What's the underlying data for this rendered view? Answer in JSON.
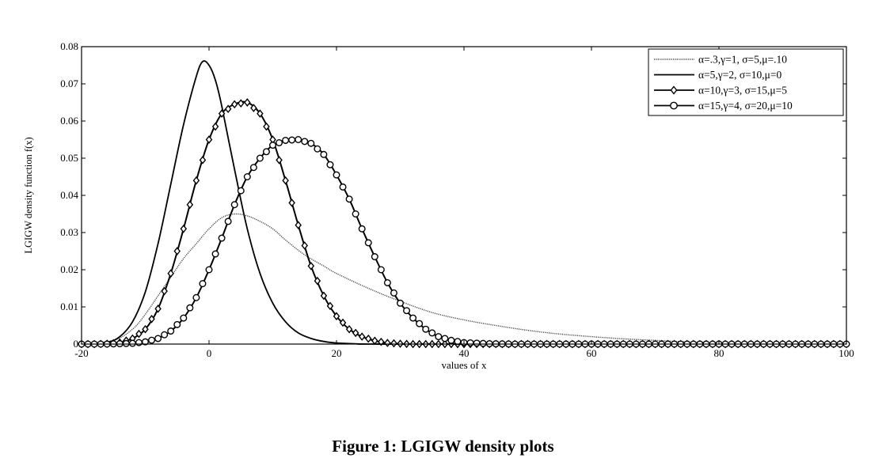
{
  "chart_data": {
    "type": "line",
    "title": "",
    "xlabel": "values of x",
    "ylabel": "LGIGW density function f(x)",
    "xlim": [
      -20,
      100
    ],
    "ylim": [
      0,
      0.08
    ],
    "xticks": [
      "-20",
      "0",
      "20",
      "40",
      "60",
      "80",
      "100"
    ],
    "yticks": [
      "0",
      "0.01",
      "0.02",
      "0.03",
      "0.04",
      "0.05",
      "0.06",
      "0.07",
      "0.08"
    ],
    "grid": false,
    "legend_position": "top-right",
    "series": [
      {
        "name": "α=.3,γ=1, σ=5,μ=.10",
        "style": "dotted",
        "marker": "none",
        "points": [
          [
            -20,
            0
          ],
          [
            -15,
            0.001
          ],
          [
            -12,
            0.004
          ],
          [
            -10,
            0.008
          ],
          [
            -8,
            0.013
          ],
          [
            -6,
            0.018
          ],
          [
            -4,
            0.023
          ],
          [
            -2,
            0.027
          ],
          [
            0,
            0.031
          ],
          [
            2,
            0.034
          ],
          [
            4,
            0.035
          ],
          [
            6,
            0.0345
          ],
          [
            8,
            0.033
          ],
          [
            10,
            0.031
          ],
          [
            12,
            0.028
          ],
          [
            15,
            0.024
          ],
          [
            18,
            0.021
          ],
          [
            20,
            0.019
          ],
          [
            25,
            0.015
          ],
          [
            30,
            0.0115
          ],
          [
            35,
            0.0085
          ],
          [
            40,
            0.0065
          ],
          [
            45,
            0.005
          ],
          [
            50,
            0.0037
          ],
          [
            55,
            0.0027
          ],
          [
            60,
            0.002
          ],
          [
            65,
            0.0014
          ],
          [
            70,
            0.001
          ],
          [
            75,
            0.0006
          ],
          [
            80,
            0.0004
          ],
          [
            90,
            0.0002
          ],
          [
            100,
            0.0001
          ]
        ]
      },
      {
        "name": "α=5,γ=2, σ=10,μ=0",
        "style": "solid",
        "marker": "none",
        "points": [
          [
            -20,
            0
          ],
          [
            -16,
            0.0005
          ],
          [
            -14,
            0.002
          ],
          [
            -12,
            0.006
          ],
          [
            -10,
            0.014
          ],
          [
            -8,
            0.027
          ],
          [
            -6,
            0.043
          ],
          [
            -4,
            0.059
          ],
          [
            -2,
            0.072
          ],
          [
            -1,
            0.076
          ],
          [
            0,
            0.075
          ],
          [
            1,
            0.071
          ],
          [
            2,
            0.064
          ],
          [
            4,
            0.047
          ],
          [
            6,
            0.031
          ],
          [
            8,
            0.019
          ],
          [
            10,
            0.011
          ],
          [
            12,
            0.006
          ],
          [
            14,
            0.003
          ],
          [
            16,
            0.0015
          ],
          [
            18,
            0.0007
          ],
          [
            20,
            0.0003
          ],
          [
            25,
            0
          ],
          [
            30,
            0
          ],
          [
            100,
            0
          ]
        ]
      },
      {
        "name": "α=10,γ=3, σ=15,μ=5",
        "style": "solid",
        "marker": "diamond",
        "points": [
          [
            -20,
            0
          ],
          [
            -18,
            0
          ],
          [
            -16,
            0.0001
          ],
          [
            -14,
            0.0004
          ],
          [
            -12,
            0.0015
          ],
          [
            -10,
            0.004
          ],
          [
            -8,
            0.0095
          ],
          [
            -6,
            0.019
          ],
          [
            -4,
            0.031
          ],
          [
            -2,
            0.044
          ],
          [
            0,
            0.055
          ],
          [
            2,
            0.062
          ],
          [
            4,
            0.0645
          ],
          [
            6,
            0.065
          ],
          [
            8,
            0.062
          ],
          [
            10,
            0.055
          ],
          [
            12,
            0.044
          ],
          [
            14,
            0.032
          ],
          [
            16,
            0.021
          ],
          [
            18,
            0.013
          ],
          [
            20,
            0.0075
          ],
          [
            22,
            0.004
          ],
          [
            24,
            0.002
          ],
          [
            26,
            0.0009
          ],
          [
            28,
            0.0003
          ],
          [
            30,
            0.0001
          ],
          [
            32,
            0
          ],
          [
            100,
            0
          ]
        ]
      },
      {
        "name": "α=15,γ=4, σ=20,μ=10",
        "style": "solid",
        "marker": "circle",
        "points": [
          [
            -20,
            0
          ],
          [
            -16,
            0
          ],
          [
            -12,
            0.0002
          ],
          [
            -10,
            0.0006
          ],
          [
            -8,
            0.0015
          ],
          [
            -6,
            0.0035
          ],
          [
            -4,
            0.007
          ],
          [
            -2,
            0.0125
          ],
          [
            0,
            0.02
          ],
          [
            2,
            0.0285
          ],
          [
            4,
            0.0375
          ],
          [
            6,
            0.045
          ],
          [
            8,
            0.05
          ],
          [
            10,
            0.0535
          ],
          [
            12,
            0.0548
          ],
          [
            14,
            0.055
          ],
          [
            16,
            0.054
          ],
          [
            18,
            0.051
          ],
          [
            20,
            0.0455
          ],
          [
            22,
            0.039
          ],
          [
            24,
            0.031
          ],
          [
            26,
            0.0235
          ],
          [
            28,
            0.0165
          ],
          [
            30,
            0.011
          ],
          [
            32,
            0.007
          ],
          [
            34,
            0.004
          ],
          [
            36,
            0.002
          ],
          [
            38,
            0.001
          ],
          [
            40,
            0.0004
          ],
          [
            44,
            0.0001
          ],
          [
            48,
            0
          ],
          [
            100,
            0
          ]
        ]
      }
    ]
  },
  "caption": "Figure 1: LGIGW density plots"
}
